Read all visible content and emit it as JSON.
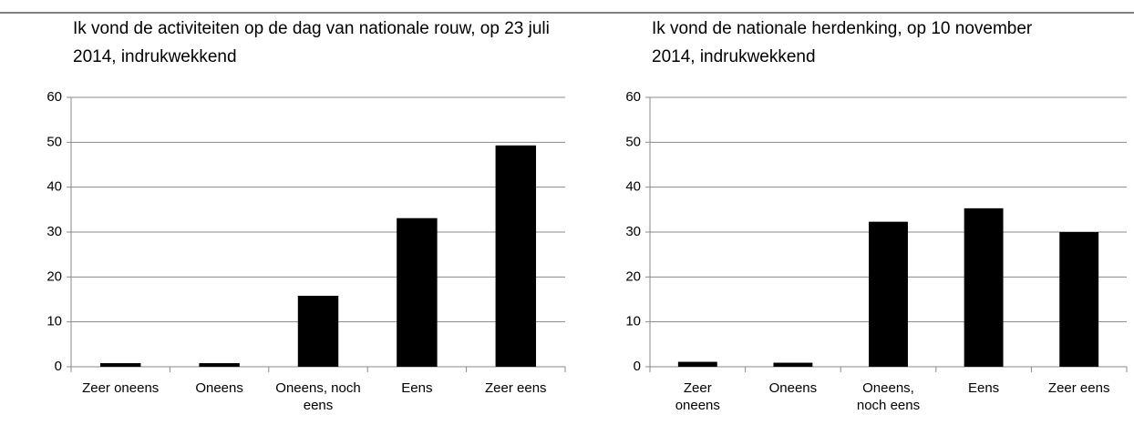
{
  "chart_data": [
    {
      "type": "bar",
      "title": "Ik vond de activiteiten op de dag van nationale rouw, op 23 juli 2014, indrukwekkend",
      "categories": [
        "Zeer oneens",
        "Oneens",
        "Oneens, noch eens",
        "Eens",
        "Zeer eens"
      ],
      "values": [
        0.8,
        0.8,
        15.8,
        33.1,
        49.3
      ],
      "color": "#000000",
      "ylim": [
        0,
        60
      ],
      "yticks": [
        0,
        10,
        20,
        30,
        40,
        50,
        60
      ],
      "grid": true
    },
    {
      "type": "bar",
      "title": "Ik vond de nationale herdenking, op 10 november 2014, indrukwekkend",
      "categories": [
        "Zeer oneens",
        "Oneens",
        "Oneens, noch eens",
        "Eens",
        "Zeer eens"
      ],
      "values": [
        1.1,
        0.9,
        32.3,
        35.3,
        30.0
      ],
      "color": "#000000",
      "ylim": [
        0,
        60
      ],
      "yticks": [
        0,
        10,
        20,
        30,
        40,
        50,
        60
      ],
      "grid": true
    }
  ]
}
